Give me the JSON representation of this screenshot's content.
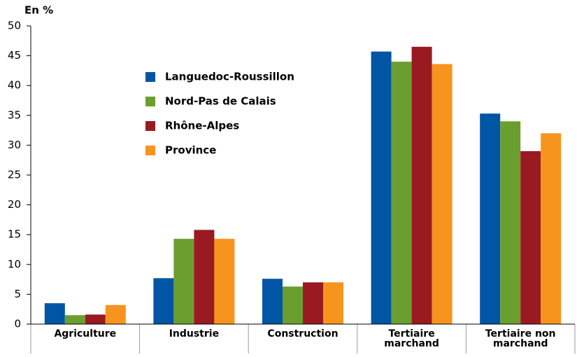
{
  "chart_data": {
    "type": "bar",
    "y_axis_label": "En %",
    "categories": [
      "Agriculture",
      "Industrie",
      "Construction",
      "Tertiaire marchand",
      "Tertiaire non marchand"
    ],
    "series": [
      {
        "name": "Languedoc-Roussillon",
        "color": "#0055a5",
        "values": [
          3.5,
          7.7,
          7.6,
          45.7,
          35.3
        ]
      },
      {
        "name": "Nord-Pas de Calais",
        "color": "#6a9f30",
        "values": [
          1.5,
          14.3,
          6.3,
          44,
          34
        ]
      },
      {
        "name": "Rhône-Alpes",
        "color": "#9a1a21",
        "values": [
          1.6,
          15.8,
          7.0,
          46.5,
          29
        ]
      },
      {
        "name": "Province",
        "color": "#f7941d",
        "values": [
          3.2,
          14.3,
          7.0,
          43.6,
          32
        ]
      }
    ],
    "ylim": [
      0,
      50
    ],
    "yticks": [
      0,
      5,
      10,
      15,
      20,
      25,
      30,
      35,
      40,
      45,
      50
    ],
    "grid": false,
    "legend": "upper left"
  }
}
